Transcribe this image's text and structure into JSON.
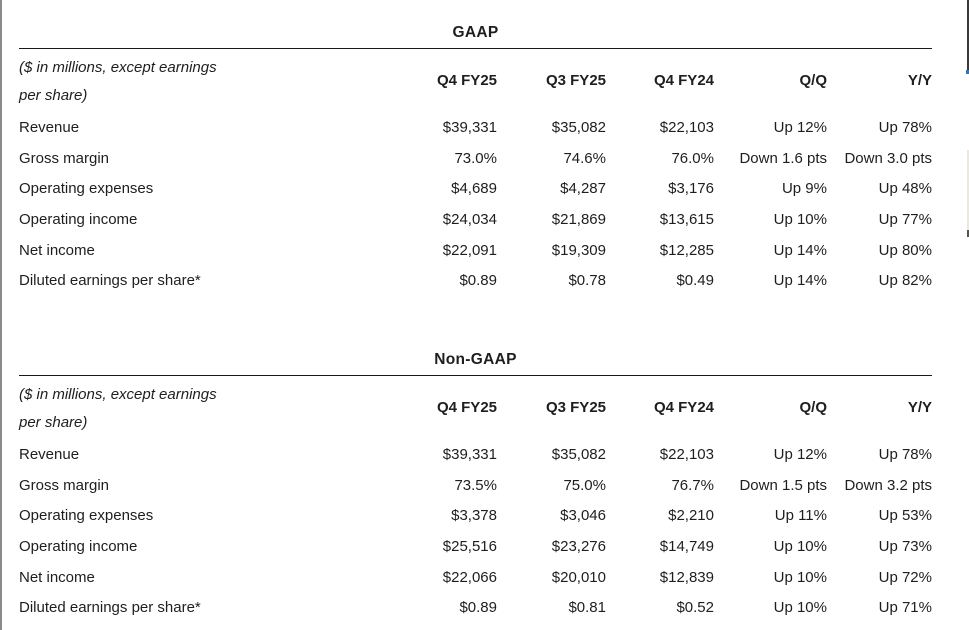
{
  "note": {
    "line1": "($ in millions, except earnings",
    "line2": "per share)"
  },
  "colors": {
    "text": "#1e1e1e",
    "rule": "#1a1a1a"
  },
  "tables": [
    {
      "title": "GAAP",
      "columns": [
        "Q4 FY25",
        "Q3 FY25",
        "Q4 FY24",
        "Q/Q",
        "Y/Y"
      ],
      "rows": [
        {
          "label": "Revenue",
          "values": [
            "$39,331",
            "$35,082",
            "$22,103",
            "Up 12%",
            "Up 78%"
          ]
        },
        {
          "label": "Gross margin",
          "values": [
            "73.0%",
            "74.6%",
            "76.0%",
            "Down 1.6 pts",
            "Down 3.0 pts"
          ]
        },
        {
          "label": "Operating expenses",
          "values": [
            "$4,689",
            "$4,287",
            "$3,176",
            "Up 9%",
            "Up 48%"
          ]
        },
        {
          "label": "Operating income",
          "values": [
            "$24,034",
            "$21,869",
            "$13,615",
            "Up 10%",
            "Up 77%"
          ]
        },
        {
          "label": "Net income",
          "values": [
            "$22,091",
            "$19,309",
            "$12,285",
            "Up 14%",
            "Up 80%"
          ]
        },
        {
          "label": "Diluted earnings per share*",
          "values": [
            "$0.89",
            "$0.78",
            "$0.49",
            "Up 14%",
            "Up 82%"
          ]
        }
      ]
    },
    {
      "title": "Non-GAAP",
      "columns": [
        "Q4 FY25",
        "Q3 FY25",
        "Q4 FY24",
        "Q/Q",
        "Y/Y"
      ],
      "rows": [
        {
          "label": "Revenue",
          "values": [
            "$39,331",
            "$35,082",
            "$22,103",
            "Up 12%",
            "Up 78%"
          ]
        },
        {
          "label": "Gross margin",
          "values": [
            "73.5%",
            "75.0%",
            "76.7%",
            "Down 1.5 pts",
            "Down 3.2 pts"
          ]
        },
        {
          "label": "Operating expenses",
          "values": [
            "$3,378",
            "$3,046",
            "$2,210",
            "Up 11%",
            "Up 53%"
          ]
        },
        {
          "label": "Operating income",
          "values": [
            "$25,516",
            "$23,276",
            "$14,749",
            "Up 10%",
            "Up 73%"
          ]
        },
        {
          "label": "Net income",
          "values": [
            "$22,066",
            "$20,010",
            "$12,839",
            "Up 10%",
            "Up 72%"
          ]
        },
        {
          "label": "Diluted earnings per share*",
          "values": [
            "$0.89",
            "$0.81",
            "$0.52",
            "Up 10%",
            "Up 71%"
          ]
        }
      ]
    }
  ]
}
